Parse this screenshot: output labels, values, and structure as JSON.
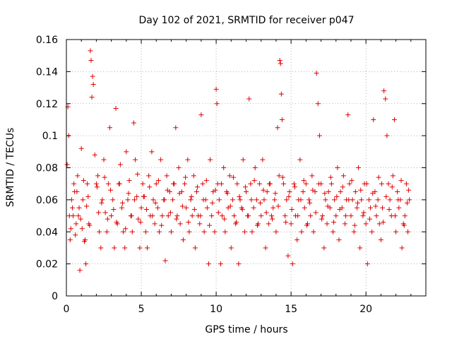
{
  "chart_data": {
    "type": "scatter",
    "title": "Day 102 of 2021, SRMTID for receiver p047",
    "xlabel": "GPS time / hours",
    "ylabel": "SRMTID / TECUs",
    "xlim": [
      0,
      24
    ],
    "ylim": [
      0,
      0.16
    ],
    "x_ticks": [
      0,
      5,
      10,
      15,
      20
    ],
    "x_tick_labels": [
      "0",
      "5",
      "10",
      "15",
      "20"
    ],
    "y_ticks": [
      0,
      0.02,
      0.04,
      0.06,
      0.08,
      0.1,
      0.12,
      0.14,
      0.16
    ],
    "y_tick_labels": [
      "0",
      "0.02",
      "0.04",
      "0.06",
      "0.08",
      "0.1",
      "0.12",
      "0.14",
      "0.16"
    ],
    "grid": true,
    "marker": "+",
    "color": "#e00000",
    "series": [
      {
        "name": "SRMTID",
        "x": [
          0.05,
          0.1,
          0.15,
          0.2,
          0.3,
          0.35,
          0.4,
          0.5,
          0.6,
          0.7,
          0.8,
          0.9,
          1.0,
          1.1,
          1.2,
          1.3,
          1.4,
          1.5,
          1.6,
          1.65,
          1.7,
          1.75,
          1.8,
          1.9,
          2.0,
          2.1,
          2.2,
          2.3,
          2.4,
          2.5,
          2.6,
          2.7,
          2.8,
          2.9,
          3.0,
          3.1,
          3.2,
          3.3,
          3.4,
          3.5,
          3.6,
          3.7,
          3.8,
          3.9,
          4.0,
          4.1,
          4.2,
          4.3,
          4.4,
          4.5,
          4.6,
          4.7,
          4.8,
          4.9,
          5.0,
          5.1,
          5.2,
          5.3,
          5.4,
          5.5,
          5.6,
          5.7,
          5.8,
          5.9,
          6.0,
          6.1,
          6.2,
          6.3,
          6.4,
          6.5,
          6.6,
          6.7,
          6.8,
          6.9,
          7.0,
          7.1,
          7.2,
          7.3,
          7.4,
          7.5,
          7.6,
          7.7,
          7.8,
          7.9,
          8.0,
          8.1,
          8.2,
          8.3,
          8.4,
          8.5,
          8.6,
          8.7,
          8.8,
          8.9,
          9.0,
          9.1,
          9.2,
          9.3,
          9.4,
          9.5,
          9.6,
          9.7,
          9.8,
          9.9,
          10.0,
          10.05,
          10.1,
          10.2,
          10.3,
          10.4,
          10.5,
          10.6,
          10.7,
          10.8,
          10.9,
          11.0,
          11.1,
          11.2,
          11.3,
          11.4,
          11.5,
          11.6,
          11.7,
          11.8,
          11.9,
          12.0,
          12.1,
          12.2,
          12.3,
          12.4,
          12.5,
          12.6,
          12.7,
          12.8,
          12.9,
          13.0,
          13.1,
          13.2,
          13.3,
          13.4,
          13.5,
          13.6,
          13.7,
          13.8,
          13.9,
          14.0,
          14.1,
          14.2,
          14.25,
          14.3,
          14.35,
          14.4,
          14.5,
          14.6,
          14.7,
          14.8,
          14.9,
          15.0,
          15.1,
          15.2,
          15.3,
          15.4,
          15.5,
          15.6,
          15.7,
          15.8,
          15.9,
          16.0,
          16.1,
          16.2,
          16.3,
          16.4,
          16.5,
          16.6,
          16.7,
          16.8,
          16.9,
          17.0,
          17.1,
          17.2,
          17.3,
          17.4,
          17.5,
          17.6,
          17.7,
          17.8,
          17.9,
          18.0,
          18.1,
          18.2,
          18.3,
          18.4,
          18.5,
          18.6,
          18.7,
          18.8,
          18.9,
          19.0,
          19.1,
          19.2,
          19.3,
          19.4,
          19.5,
          19.6,
          19.7,
          19.8,
          19.9,
          20.0,
          20.1,
          20.2,
          20.3,
          20.4,
          20.5,
          20.6,
          20.7,
          20.8,
          20.9,
          21.0,
          21.05,
          21.1,
          21.2,
          21.3,
          21.4,
          21.5,
          21.6,
          21.7,
          21.8,
          21.9,
          22.0,
          22.1,
          22.2,
          22.3,
          22.4,
          22.5,
          22.6,
          22.7,
          22.8,
          22.9,
          0.25,
          0.45,
          0.55,
          0.65,
          0.75,
          0.85,
          0.95,
          1.05,
          1.15,
          1.25,
          1.35,
          1.45,
          1.55,
          2.05,
          2.15,
          2.35,
          2.55,
          2.75,
          2.95,
          3.15,
          3.35,
          3.55,
          3.75,
          3.95,
          4.15,
          4.35,
          4.55,
          4.75,
          4.95,
          5.15,
          5.35,
          5.55,
          5.75,
          5.95,
          6.15,
          6.35,
          6.55,
          6.75,
          6.95,
          7.15,
          7.35,
          7.55,
          7.75,
          7.95,
          8.15,
          8.35,
          8.55,
          8.75,
          8.95,
          9.15,
          9.35,
          9.55,
          9.75,
          9.95,
          10.15,
          10.35,
          10.55,
          10.75,
          10.95,
          11.15,
          11.35,
          11.55,
          11.75,
          11.95,
          12.15,
          12.35,
          12.55,
          12.75,
          12.95,
          13.15,
          13.35,
          13.55,
          13.75,
          13.95,
          14.15,
          14.45,
          14.65,
          14.85,
          15.05,
          15.25,
          15.45,
          15.65,
          15.85,
          16.05,
          16.25,
          16.45,
          16.65,
          16.85,
          17.05,
          17.25,
          17.45,
          17.65,
          17.85,
          18.05,
          18.25,
          18.45,
          18.65,
          18.85,
          19.05,
          19.25,
          19.45,
          19.65,
          19.85,
          20.05,
          20.25,
          20.45,
          20.65,
          20.85,
          21.15,
          21.35,
          21.55,
          21.75,
          21.95,
          22.15,
          22.35,
          22.55,
          22.75,
          22.85
        ],
        "y": [
          0.082,
          0.118,
          0.1,
          0.05,
          0.042,
          0.06,
          0.055,
          0.07,
          0.038,
          0.065,
          0.05,
          0.016,
          0.092,
          0.06,
          0.034,
          0.02,
          0.07,
          0.045,
          0.153,
          0.147,
          0.124,
          0.137,
          0.132,
          0.088,
          0.07,
          0.075,
          0.04,
          0.03,
          0.06,
          0.085,
          0.052,
          0.04,
          0.07,
          0.105,
          0.05,
          0.06,
          0.03,
          0.117,
          0.045,
          0.07,
          0.082,
          0.055,
          0.04,
          0.03,
          0.09,
          0.06,
          0.072,
          0.05,
          0.04,
          0.108,
          0.085,
          0.062,
          0.048,
          0.03,
          0.055,
          0.07,
          0.062,
          0.04,
          0.03,
          0.075,
          0.05,
          0.09,
          0.06,
          0.045,
          0.07,
          0.055,
          0.04,
          0.085,
          0.05,
          0.06,
          0.022,
          0.075,
          0.05,
          0.065,
          0.04,
          0.06,
          0.07,
          0.105,
          0.05,
          0.08,
          0.045,
          0.065,
          0.035,
          0.07,
          0.055,
          0.085,
          0.04,
          0.06,
          0.05,
          0.075,
          0.03,
          0.065,
          0.05,
          0.045,
          0.113,
          0.07,
          0.04,
          0.06,
          0.055,
          0.02,
          0.085,
          0.05,
          0.065,
          0.04,
          0.129,
          0.12,
          0.07,
          0.06,
          0.02,
          0.05,
          0.08,
          0.04,
          0.065,
          0.055,
          0.075,
          0.03,
          0.06,
          0.05,
          0.045,
          0.07,
          0.02,
          0.06,
          0.055,
          0.085,
          0.04,
          0.065,
          0.05,
          0.123,
          0.07,
          0.04,
          0.055,
          0.08,
          0.06,
          0.045,
          0.07,
          0.05,
          0.085,
          0.06,
          0.03,
          0.065,
          0.045,
          0.07,
          0.05,
          0.055,
          0.06,
          0.04,
          0.105,
          0.075,
          0.147,
          0.145,
          0.126,
          0.11,
          0.07,
          0.05,
          0.06,
          0.025,
          0.065,
          0.045,
          0.02,
          0.07,
          0.05,
          0.035,
          0.06,
          0.085,
          0.04,
          0.065,
          0.055,
          0.07,
          0.045,
          0.06,
          0.05,
          0.075,
          0.04,
          0.065,
          0.139,
          0.12,
          0.1,
          0.07,
          0.05,
          0.03,
          0.06,
          0.045,
          0.065,
          0.055,
          0.07,
          0.04,
          0.06,
          0.05,
          0.08,
          0.035,
          0.065,
          0.055,
          0.075,
          0.045,
          0.06,
          0.113,
          0.07,
          0.05,
          0.06,
          0.04,
          0.065,
          0.055,
          0.08,
          0.03,
          0.06,
          0.05,
          0.07,
          0.045,
          0.02,
          0.06,
          0.055,
          0.04,
          0.11,
          0.065,
          0.05,
          0.06,
          0.045,
          0.035,
          0.07,
          0.055,
          0.128,
          0.123,
          0.1,
          0.07,
          0.06,
          0.05,
          0.075,
          0.11,
          0.04,
          0.065,
          0.055,
          0.06,
          0.03,
          0.045,
          0.05,
          0.07,
          0.04,
          0.06,
          0.035,
          0.05,
          0.065,
          0.045,
          0.075,
          0.055,
          0.048,
          0.042,
          0.072,
          0.035,
          0.056,
          0.062,
          0.044,
          0.068,
          0.052,
          0.058,
          0.074,
          0.048,
          0.066,
          0.054,
          0.046,
          0.07,
          0.058,
          0.042,
          0.064,
          0.05,
          0.06,
          0.076,
          0.046,
          0.062,
          0.054,
          0.068,
          0.05,
          0.058,
          0.072,
          0.044,
          0.06,
          0.066,
          0.052,
          0.07,
          0.048,
          0.064,
          0.056,
          0.074,
          0.046,
          0.062,
          0.054,
          0.068,
          0.05,
          0.06,
          0.072,
          0.044,
          0.058,
          0.066,
          0.052,
          0.07,
          0.048,
          0.064,
          0.056,
          0.074,
          0.046,
          0.062,
          0.054,
          0.068,
          0.05,
          0.06,
          0.072,
          0.044,
          0.058,
          0.066,
          0.052,
          0.07,
          0.048,
          0.064,
          0.056,
          0.074,
          0.046,
          0.062,
          0.054,
          0.068,
          0.05,
          0.06,
          0.072,
          0.044,
          0.058,
          0.066,
          0.052,
          0.07,
          0.048,
          0.064,
          0.056,
          0.074,
          0.046,
          0.062,
          0.054,
          0.068,
          0.05,
          0.06,
          0.072,
          0.044,
          0.058,
          0.066,
          0.052,
          0.07,
          0.048,
          0.064,
          0.056,
          0.074,
          0.046,
          0.062,
          0.054,
          0.068,
          0.05,
          0.06,
          0.072,
          0.044,
          0.058,
          0.066
        ]
      }
    ]
  }
}
